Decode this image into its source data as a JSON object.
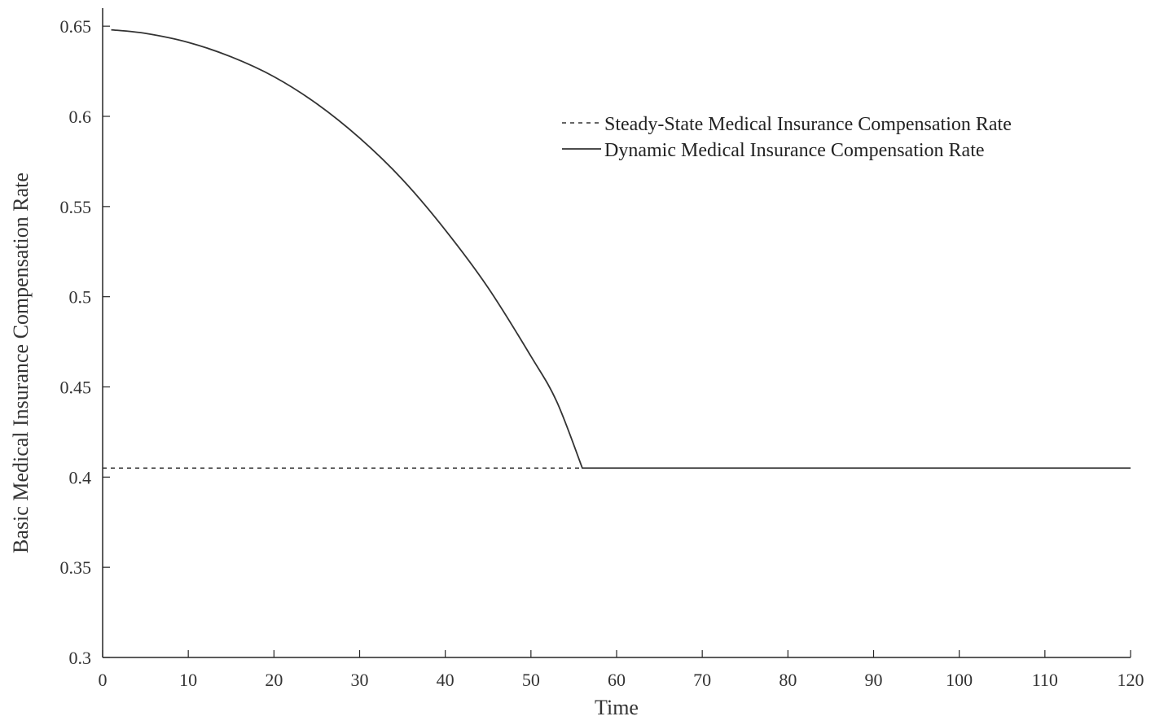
{
  "chart_data": {
    "type": "line",
    "title": "",
    "xlabel": "Time",
    "ylabel": "Basic Medical Insurance Compensation Rate",
    "xlim": [
      0,
      120
    ],
    "ylim": [
      0.3,
      0.66
    ],
    "x_ticks": [
      0,
      10,
      20,
      30,
      40,
      50,
      60,
      70,
      80,
      90,
      100,
      110,
      120
    ],
    "x_tick_labels": [
      "0",
      "10",
      "20",
      "30",
      "40",
      "50",
      "60",
      "70",
      "80",
      "90",
      "100",
      "110",
      "120"
    ],
    "y_ticks": [
      0.3,
      0.35,
      0.4,
      0.45,
      0.5,
      0.55,
      0.6,
      0.65
    ],
    "y_tick_labels": [
      "0.3",
      "0.35",
      "0.4",
      "0.45",
      "0.5",
      "0.55",
      "0.6",
      "0.65"
    ],
    "grid": false,
    "legend": {
      "placement": "top-right"
    },
    "series": [
      {
        "name": "Steady-State Medical Insurance Compensation Rate",
        "style": "dashed",
        "color": "#333333",
        "x": [
          0,
          120
        ],
        "y": [
          0.405,
          0.405
        ]
      },
      {
        "name": "Dynamic Medical Insurance Compensation Rate",
        "style": "solid",
        "color": "#333333",
        "x": [
          1,
          5,
          10,
          15,
          20,
          25,
          30,
          35,
          40,
          45,
          50,
          53,
          56,
          60,
          70,
          80,
          90,
          100,
          110,
          120
        ],
        "y": [
          0.648,
          0.646,
          0.641,
          0.633,
          0.622,
          0.607,
          0.588,
          0.565,
          0.537,
          0.505,
          0.467,
          0.442,
          0.405,
          0.405,
          0.405,
          0.405,
          0.405,
          0.405,
          0.405,
          0.405
        ]
      }
    ]
  }
}
